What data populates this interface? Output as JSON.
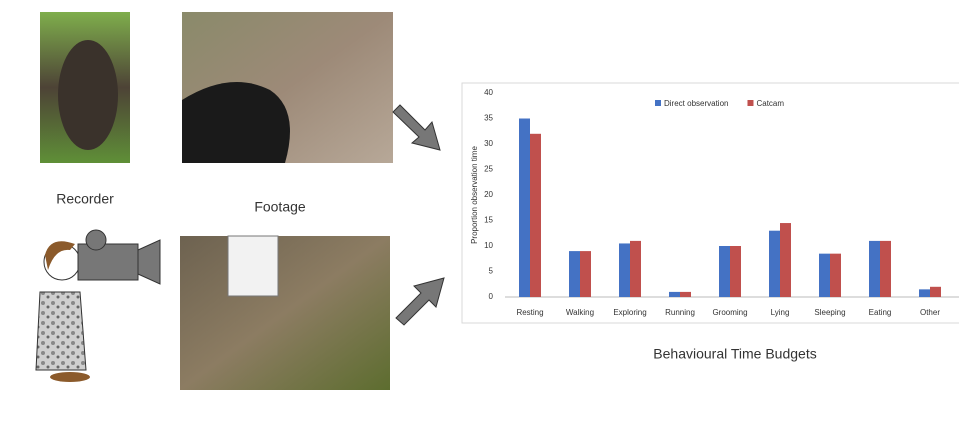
{
  "labels": {
    "recorder": "Recorder",
    "footage": "Footage",
    "budgets": "Behavioural Time Budgets"
  },
  "chart_data": {
    "type": "bar",
    "ylabel": "Proportion observation time",
    "categories": [
      "Resting",
      "Walking",
      "Exploring",
      "Running",
      "Grooming",
      "Lying",
      "Sleeping",
      "Eating",
      "Other"
    ],
    "series": [
      {
        "name": "Direct observation",
        "color": "#4472c4",
        "values": [
          35,
          9,
          10.5,
          1,
          10,
          13,
          8.5,
          11,
          1.5
        ]
      },
      {
        "name": "Catcam",
        "color": "#c0504d",
        "values": [
          32,
          9,
          11,
          1,
          10,
          14.5,
          8.5,
          11,
          2
        ]
      }
    ],
    "ylim": [
      0,
      40
    ],
    "yticks": [
      0,
      5,
      10,
      15,
      20,
      25,
      30,
      35,
      40
    ],
    "legend": "top"
  }
}
